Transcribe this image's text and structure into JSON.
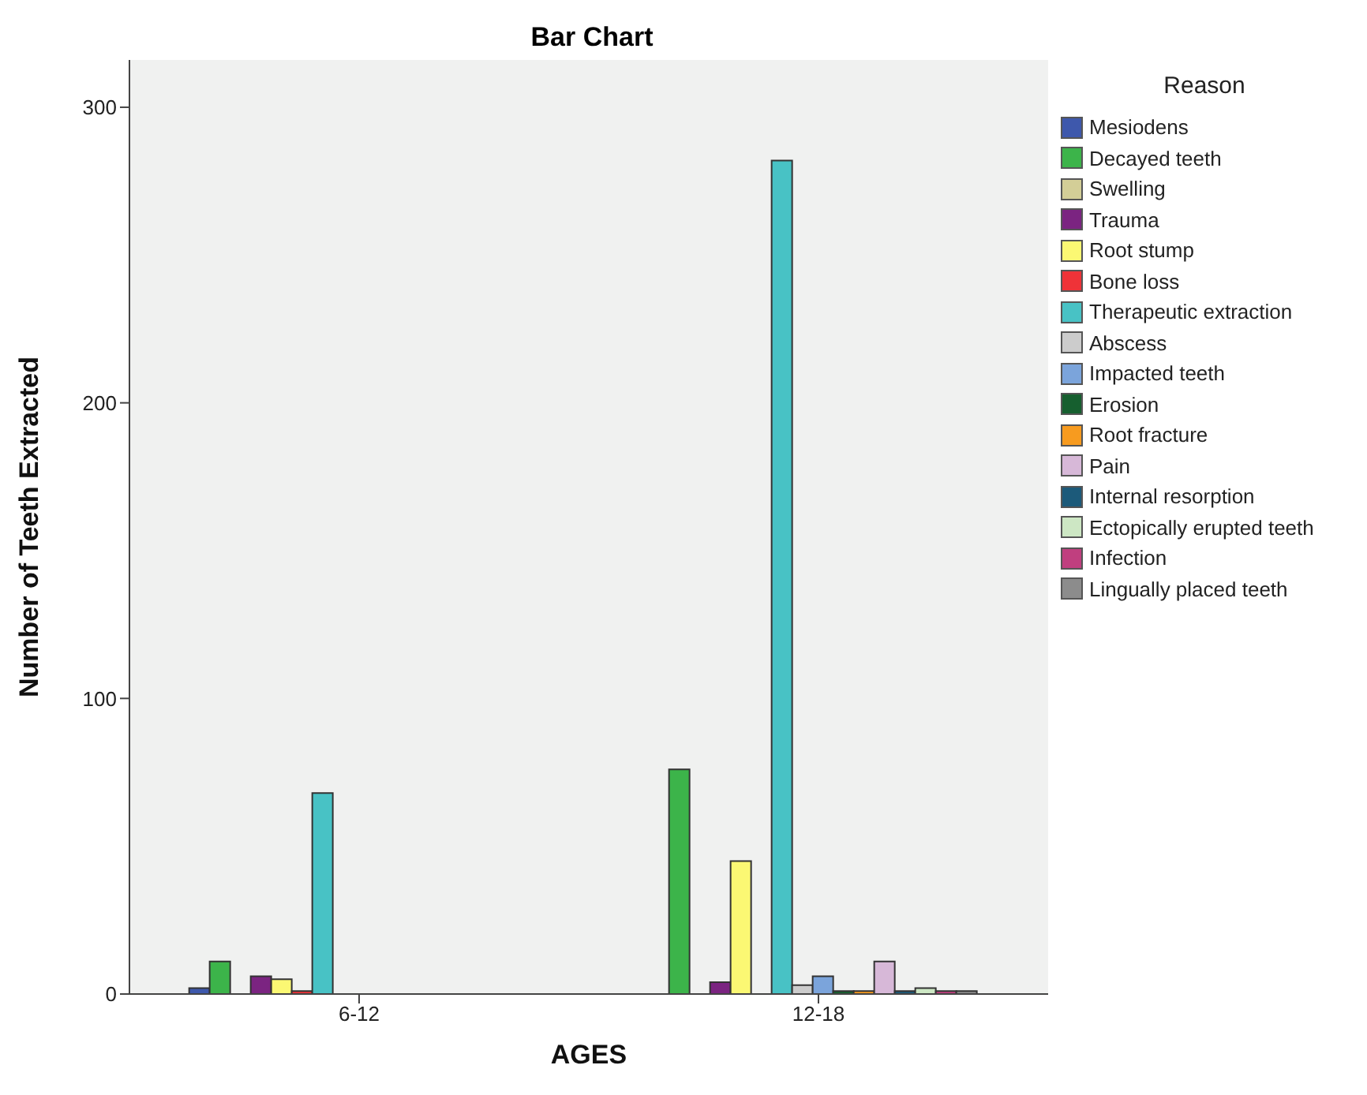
{
  "chart_data": {
    "type": "bar",
    "title": "Bar Chart",
    "xlabel": "AGES",
    "ylabel": "Number of Teeth Extracted",
    "legend_title": "Reason",
    "categories": [
      "6-12",
      "12-18"
    ],
    "ylim": [
      0,
      316
    ],
    "yticks": [
      0,
      100,
      200,
      300
    ],
    "grid": false,
    "legend": "right",
    "series": [
      {
        "name": "Mesiodens",
        "color": "#3e58ac",
        "values": [
          2,
          0
        ]
      },
      {
        "name": "Decayed teeth",
        "color": "#3cb44a",
        "values": [
          11,
          76
        ]
      },
      {
        "name": "Swelling",
        "color": "#d3ce97",
        "values": [
          0,
          0
        ]
      },
      {
        "name": "Trauma",
        "color": "#7b2481",
        "values": [
          6,
          4
        ]
      },
      {
        "name": "Root stump",
        "color": "#fbf873",
        "values": [
          5,
          45
        ]
      },
      {
        "name": "Bone loss",
        "color": "#ef3338",
        "values": [
          1,
          0
        ]
      },
      {
        "name": "Therapeutic extraction",
        "color": "#48c2c5",
        "values": [
          68,
          282
        ]
      },
      {
        "name": "Abscess",
        "color": "#cccccc",
        "values": [
          0,
          3
        ]
      },
      {
        "name": "Impacted teeth",
        "color": "#7ba4db",
        "values": [
          0,
          6
        ]
      },
      {
        "name": "Erosion",
        "color": "#165f2f",
        "values": [
          0,
          1
        ]
      },
      {
        "name": "Root fracture",
        "color": "#f79b1f",
        "values": [
          0,
          1
        ]
      },
      {
        "name": "Pain",
        "color": "#d7b8d8",
        "values": [
          0,
          11
        ]
      },
      {
        "name": "Internal resorption",
        "color": "#1c5a7a",
        "values": [
          0,
          1
        ]
      },
      {
        "name": "Ectopically erupted teeth",
        "color": "#cde7c4",
        "values": [
          0,
          2
        ]
      },
      {
        "name": "Infection",
        "color": "#c03f7f",
        "values": [
          0,
          1
        ]
      },
      {
        "name": "Lingually placed teeth",
        "color": "#8c8c8c",
        "values": [
          0,
          1
        ]
      }
    ]
  }
}
